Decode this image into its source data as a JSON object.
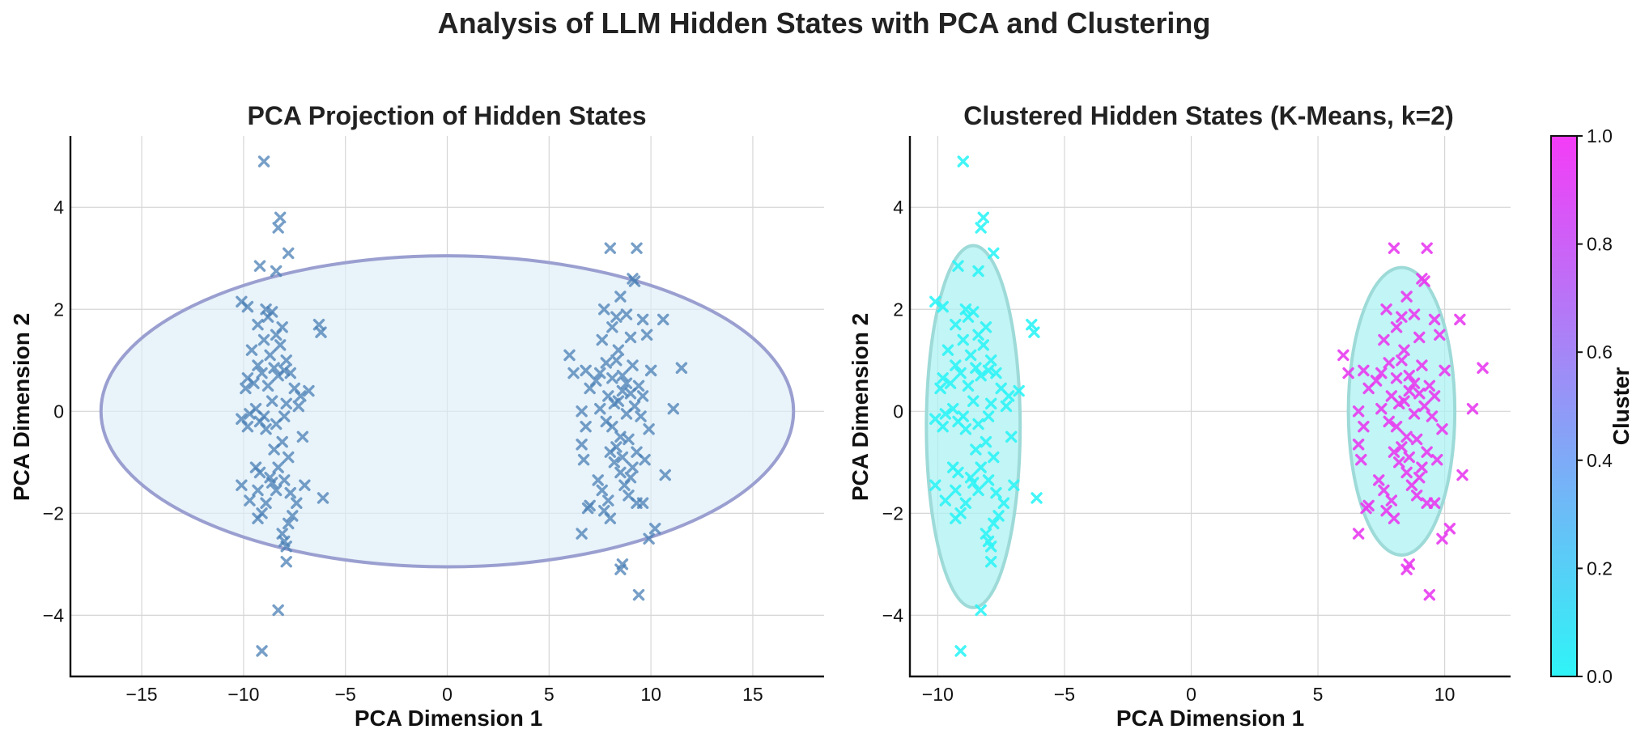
{
  "figure": {
    "suptitle": "Analysis of LLM Hidden States with PCA and Clustering"
  },
  "chart_data": [
    {
      "type": "scatter",
      "title": "PCA Projection of Hidden States",
      "xlabel": "PCA Dimension 1",
      "ylabel": "PCA Dimension 2",
      "xlim": [
        -18.5,
        18.5
      ],
      "ylim": [
        -5.2,
        5.4
      ],
      "xticks": [
        -15,
        -10,
        -5,
        0,
        5,
        10,
        15
      ],
      "yticks": [
        -4,
        -2,
        0,
        2,
        4
      ],
      "grid": true,
      "marker": "x",
      "marker_color": "#4a7fb5",
      "ellipse": {
        "center": [
          0,
          0
        ],
        "rx": 17,
        "ry": 3.05,
        "fill": "#dcedf7",
        "stroke": "#9a9fd0"
      },
      "points": [
        [
          -9.0,
          4.9
        ],
        [
          -8.2,
          3.8
        ],
        [
          -8.3,
          3.6
        ],
        [
          -7.8,
          3.1
        ],
        [
          -9.2,
          2.85
        ],
        [
          -8.4,
          2.75
        ],
        [
          -10.1,
          2.15
        ],
        [
          -9.8,
          2.05
        ],
        [
          -8.9,
          2.0
        ],
        [
          -8.6,
          1.95
        ],
        [
          -8.8,
          1.85
        ],
        [
          -9.3,
          1.7
        ],
        [
          -8.1,
          1.65
        ],
        [
          -6.3,
          1.7
        ],
        [
          -6.2,
          1.55
        ],
        [
          -8.4,
          1.5
        ],
        [
          -9.0,
          1.4
        ],
        [
          -8.2,
          1.3
        ],
        [
          -9.6,
          1.2
        ],
        [
          -8.7,
          1.1
        ],
        [
          -7.9,
          1.0
        ],
        [
          -9.3,
          0.9
        ],
        [
          -8.5,
          0.85
        ],
        [
          -8.0,
          0.8
        ],
        [
          -9.1,
          0.75
        ],
        [
          -7.7,
          0.75
        ],
        [
          -8.3,
          0.7
        ],
        [
          -9.8,
          0.65
        ],
        [
          -9.5,
          0.55
        ],
        [
          -8.8,
          0.5
        ],
        [
          -7.5,
          0.45
        ],
        [
          -9.9,
          0.45
        ],
        [
          -7.2,
          0.3
        ],
        [
          -6.8,
          0.4
        ],
        [
          -8.6,
          0.2
        ],
        [
          -7.9,
          0.15
        ],
        [
          -7.3,
          0.1
        ],
        [
          -9.4,
          0.05
        ],
        [
          -9.7,
          -0.05
        ],
        [
          -9.0,
          -0.1
        ],
        [
          -8.0,
          -0.1
        ],
        [
          -10.1,
          -0.15
        ],
        [
          -9.2,
          -0.2
        ],
        [
          -8.4,
          -0.25
        ],
        [
          -9.8,
          -0.3
        ],
        [
          -8.9,
          -0.35
        ],
        [
          -7.1,
          -0.5
        ],
        [
          -8.1,
          -0.6
        ],
        [
          -8.5,
          -0.75
        ],
        [
          -7.8,
          -0.9
        ],
        [
          -9.4,
          -1.1
        ],
        [
          -8.3,
          -1.1
        ],
        [
          -9.2,
          -1.2
        ],
        [
          -8.7,
          -1.3
        ],
        [
          -8.0,
          -1.35
        ],
        [
          -10.1,
          -1.45
        ],
        [
          -8.6,
          -1.4
        ],
        [
          -7.0,
          -1.45
        ],
        [
          -9.3,
          -1.55
        ],
        [
          -8.4,
          -1.55
        ],
        [
          -7.7,
          -1.6
        ],
        [
          -6.1,
          -1.7
        ],
        [
          -9.7,
          -1.75
        ],
        [
          -8.9,
          -1.8
        ],
        [
          -7.4,
          -1.8
        ],
        [
          -9.1,
          -2.0
        ],
        [
          -7.6,
          -2.05
        ],
        [
          -9.3,
          -2.1
        ],
        [
          -7.8,
          -2.2
        ],
        [
          -8.1,
          -2.4
        ],
        [
          -8.0,
          -2.55
        ],
        [
          -7.9,
          -2.65
        ],
        [
          -7.9,
          -2.95
        ],
        [
          -8.3,
          -3.9
        ],
        [
          -9.1,
          -4.7
        ],
        [
          8.0,
          3.2
        ],
        [
          9.3,
          3.2
        ],
        [
          9.1,
          2.6
        ],
        [
          9.2,
          2.55
        ],
        [
          8.5,
          2.25
        ],
        [
          7.7,
          2.0
        ],
        [
          8.8,
          1.9
        ],
        [
          8.3,
          1.85
        ],
        [
          9.6,
          1.8
        ],
        [
          10.6,
          1.8
        ],
        [
          8.1,
          1.65
        ],
        [
          9.8,
          1.5
        ],
        [
          9.0,
          1.45
        ],
        [
          7.6,
          1.4
        ],
        [
          8.4,
          1.2
        ],
        [
          8.3,
          1.0
        ],
        [
          6.0,
          1.1
        ],
        [
          7.8,
          0.95
        ],
        [
          9.1,
          0.9
        ],
        [
          11.5,
          0.85
        ],
        [
          6.2,
          0.75
        ],
        [
          6.8,
          0.8
        ],
        [
          7.5,
          0.75
        ],
        [
          8.6,
          0.7
        ],
        [
          10.0,
          0.8
        ],
        [
          8.1,
          0.65
        ],
        [
          7.3,
          0.6
        ],
        [
          8.8,
          0.55
        ],
        [
          9.4,
          0.5
        ],
        [
          7.0,
          0.45
        ],
        [
          8.6,
          0.4
        ],
        [
          9.0,
          0.35
        ],
        [
          7.9,
          0.3
        ],
        [
          9.6,
          0.3
        ],
        [
          8.4,
          0.2
        ],
        [
          8.2,
          0.15
        ],
        [
          9.2,
          0.1
        ],
        [
          7.5,
          0.05
        ],
        [
          6.6,
          0.0
        ],
        [
          11.1,
          0.05
        ],
        [
          8.8,
          -0.05
        ],
        [
          9.5,
          -0.1
        ],
        [
          7.8,
          -0.2
        ],
        [
          6.8,
          -0.3
        ],
        [
          8.1,
          -0.3
        ],
        [
          9.9,
          -0.35
        ],
        [
          8.5,
          -0.5
        ],
        [
          8.9,
          -0.55
        ],
        [
          6.6,
          -0.65
        ],
        [
          8.3,
          -0.7
        ],
        [
          8.0,
          -0.8
        ],
        [
          9.3,
          -0.8
        ],
        [
          8.6,
          -0.9
        ],
        [
          6.7,
          -0.95
        ],
        [
          9.7,
          -0.95
        ],
        [
          8.2,
          -1.0
        ],
        [
          9.1,
          -1.1
        ],
        [
          8.5,
          -1.2
        ],
        [
          10.7,
          -1.25
        ],
        [
          9.0,
          -1.3
        ],
        [
          7.4,
          -1.35
        ],
        [
          8.7,
          -1.45
        ],
        [
          7.6,
          -1.55
        ],
        [
          8.9,
          -1.65
        ],
        [
          7.9,
          -1.75
        ],
        [
          9.3,
          -1.8
        ],
        [
          9.6,
          -1.8
        ],
        [
          7.0,
          -1.85
        ],
        [
          6.9,
          -1.9
        ],
        [
          7.7,
          -1.95
        ],
        [
          8.0,
          -2.1
        ],
        [
          10.2,
          -2.3
        ],
        [
          6.6,
          -2.4
        ],
        [
          9.9,
          -2.5
        ],
        [
          8.6,
          -3.0
        ],
        [
          8.5,
          -3.1
        ],
        [
          9.4,
          -3.6
        ]
      ]
    },
    {
      "type": "scatter",
      "title": "Clustered Hidden States (K-Means, k=2)",
      "xlabel": "PCA Dimension 1",
      "ylabel": "PCA Dimension 2",
      "xlim": [
        -11.1,
        12.6
      ],
      "ylim": [
        -5.2,
        5.4
      ],
      "xticks": [
        -10,
        -5,
        0,
        5,
        10
      ],
      "yticks": [
        -4,
        -2,
        0,
        2,
        4
      ],
      "grid": true,
      "marker": "x",
      "clusters": [
        {
          "id": 0,
          "color": "#2ff4f7",
          "ellipse": {
            "center": [
              -8.6,
              -0.3
            ],
            "rx": 1.85,
            "ry": 3.55
          }
        },
        {
          "id": 1,
          "color": "#e83cf0",
          "ellipse": {
            "center": [
              8.3,
              0.0
            ],
            "rx": 2.1,
            "ry": 2.82
          }
        }
      ],
      "ellipse_fill": "#aef1f2",
      "ellipse_stroke": "#9ddad8",
      "colorbar": {
        "label": "Cluster",
        "ticks": [
          "0.0",
          "0.2",
          "0.4",
          "0.6",
          "0.8",
          "1.0"
        ],
        "colormap": "cool",
        "range": [
          0.0,
          1.0
        ],
        "low_color": "#2ff4f7",
        "high_color": "#f43cf7"
      }
    }
  ]
}
